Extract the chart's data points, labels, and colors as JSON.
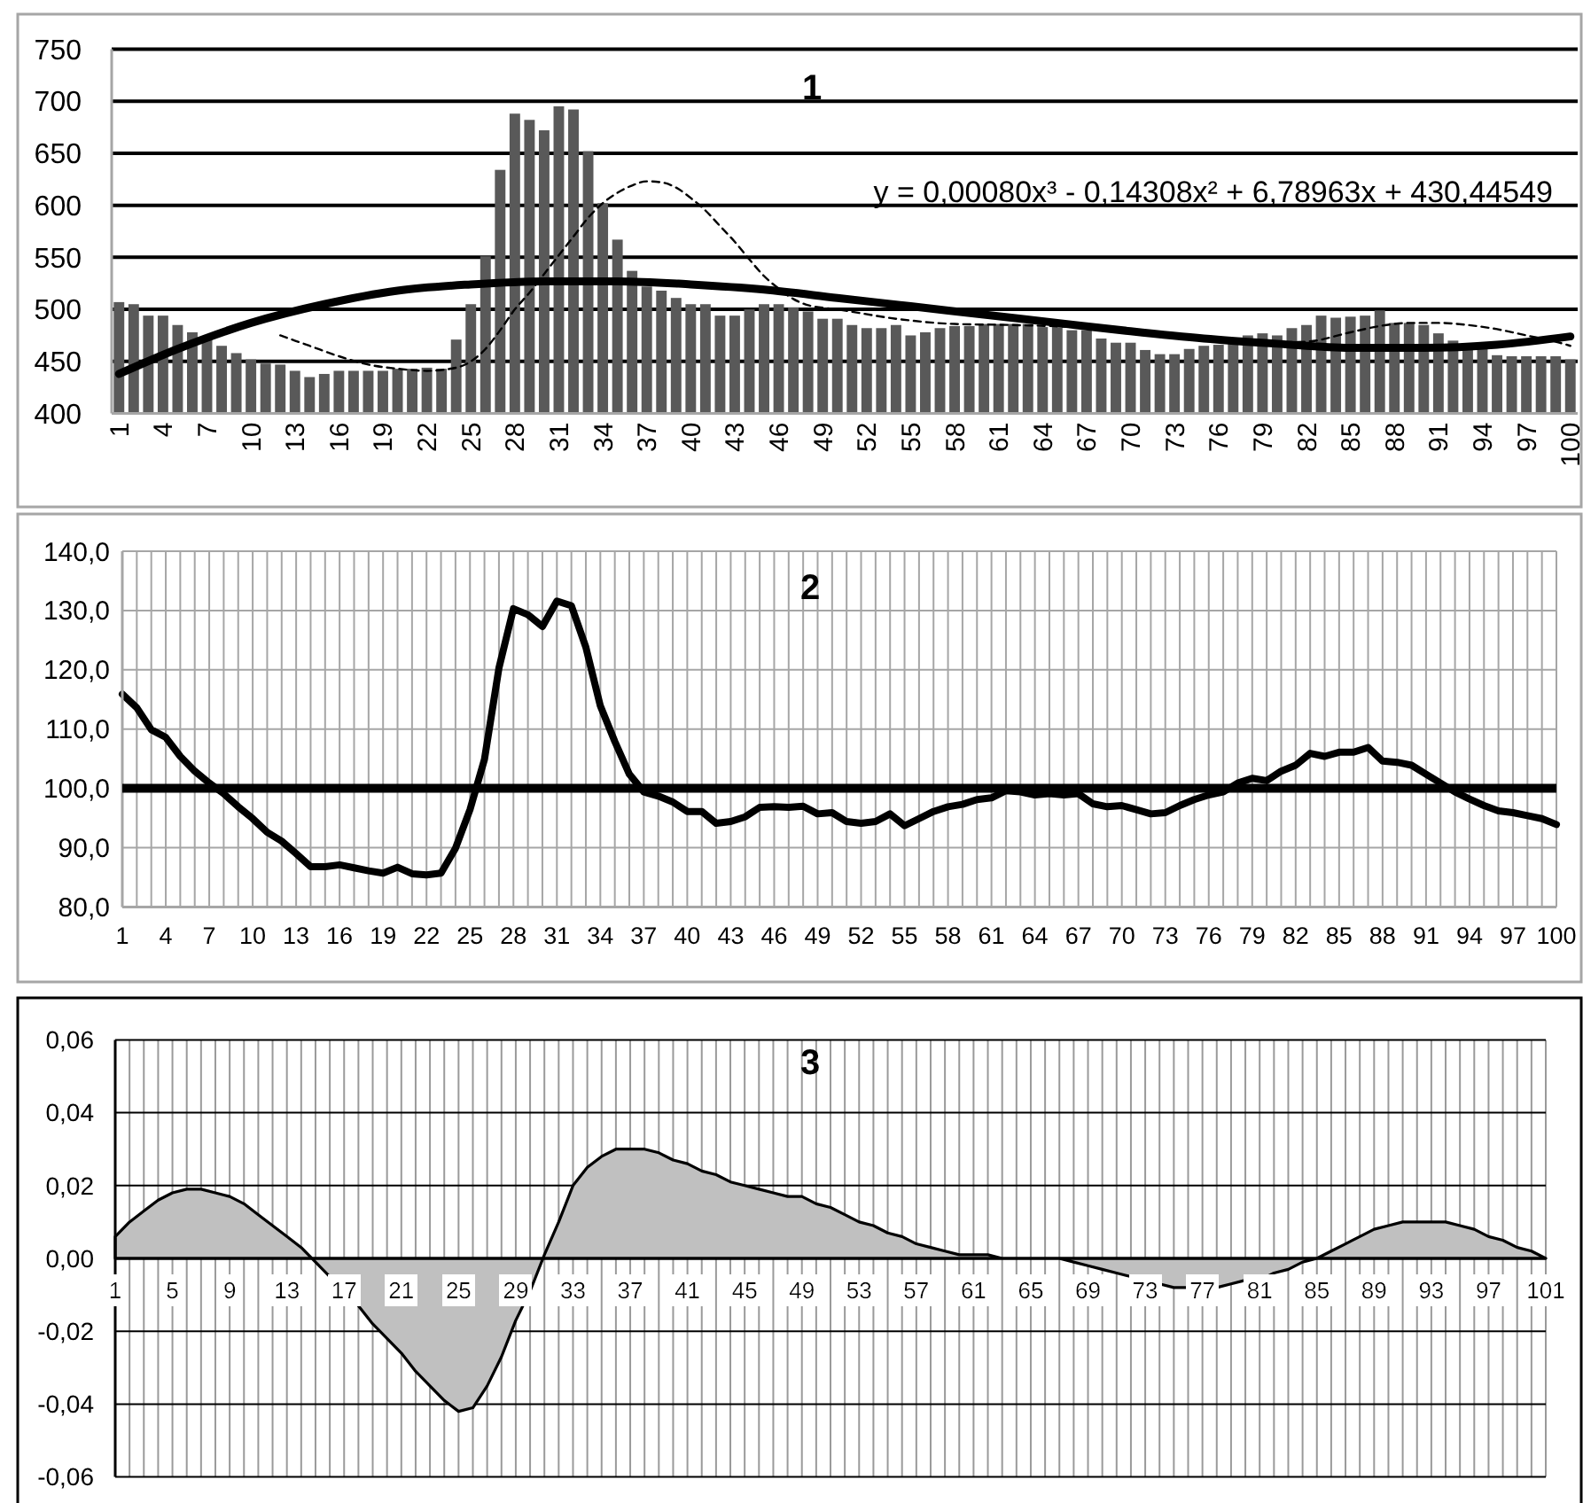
{
  "chart_data": [
    {
      "type": "bar",
      "title": "1",
      "x": [
        1,
        2,
        3,
        4,
        5,
        6,
        7,
        8,
        9,
        10,
        11,
        12,
        13,
        14,
        15,
        16,
        17,
        18,
        19,
        20,
        21,
        22,
        23,
        24,
        25,
        26,
        27,
        28,
        29,
        30,
        31,
        32,
        33,
        34,
        35,
        36,
        37,
        38,
        39,
        40,
        41,
        42,
        43,
        44,
        45,
        46,
        47,
        48,
        49,
        50,
        51,
        52,
        53,
        54,
        55,
        56,
        57,
        58,
        59,
        60,
        61,
        62,
        63,
        64,
        65,
        66,
        67,
        68,
        69,
        70,
        71,
        72,
        73,
        74,
        75,
        76,
        77,
        78,
        79,
        80,
        81,
        82,
        83,
        84,
        85,
        86,
        87,
        88,
        89,
        90,
        91,
        92,
        93,
        94,
        95,
        96,
        97,
        98,
        99,
        100
      ],
      "series": [
        {
          "color": "#595959",
          "values": [
            507,
            505,
            494,
            494,
            485,
            478,
            472,
            465,
            458,
            452,
            448,
            447,
            441,
            435,
            438,
            441,
            441,
            441,
            441,
            443,
            443,
            444,
            443,
            471,
            505,
            551,
            634,
            688,
            682,
            672,
            695,
            692,
            652,
            602,
            567,
            537,
            522,
            518,
            511,
            505,
            505,
            494,
            494,
            500,
            505,
            505,
            502,
            498,
            491,
            491,
            485,
            482,
            482,
            485,
            475,
            478,
            482,
            484,
            484,
            486,
            486,
            486,
            486,
            483,
            483,
            480,
            480,
            472,
            468,
            468,
            461,
            457,
            457,
            462,
            465,
            466,
            469,
            475,
            477,
            475,
            482,
            485,
            494,
            492,
            493,
            494,
            499,
            487,
            487,
            485,
            477,
            470,
            462,
            462,
            456,
            455,
            455,
            455,
            455,
            452
          ]
        },
        {
          "type": "line",
          "color": "#000000",
          "x": [
            1,
            5,
            10,
            15,
            20,
            25,
            30,
            35,
            40,
            45,
            50,
            55,
            60,
            65,
            70,
            75,
            80,
            85,
            90,
            95,
            100
          ],
          "values": [
            438,
            462,
            487,
            505,
            518,
            524,
            527,
            527,
            524,
            519,
            511,
            503,
            495,
            487,
            479,
            472,
            467,
            463,
            463,
            466,
            474
          ]
        },
        {
          "type": "line",
          "color": "#000000",
          "line_style": "dashed",
          "x": [
            12,
            14,
            16,
            18,
            20,
            22,
            24,
            25,
            26,
            27,
            28,
            29,
            30,
            31,
            32,
            33,
            34,
            35,
            36,
            37,
            38,
            39,
            40,
            41,
            42,
            43,
            44,
            45,
            46,
            47,
            48,
            50,
            54,
            58,
            62,
            66,
            70,
            75,
            78,
            82,
            85,
            87,
            89,
            91,
            93,
            95,
            97,
            99,
            100
          ],
          "values": [
            475,
            465,
            455,
            447,
            443,
            441,
            444,
            450,
            462,
            480,
            500,
            516,
            534,
            552,
            570,
            588,
            602,
            612,
            619,
            623,
            622,
            617,
            607,
            595,
            580,
            565,
            548,
            532,
            520,
            510,
            504,
            500,
            491,
            486,
            485,
            483,
            478,
            470,
            468,
            469,
            478,
            484,
            487,
            487,
            485,
            481,
            475,
            469,
            465
          ]
        }
      ],
      "xlim": [
        0.5,
        100.5
      ],
      "xticks": [
        1,
        4,
        7,
        10,
        13,
        16,
        19,
        22,
        25,
        28,
        31,
        34,
        37,
        40,
        43,
        46,
        49,
        52,
        55,
        58,
        61,
        64,
        67,
        70,
        73,
        76,
        79,
        82,
        85,
        88,
        91,
        94,
        97,
        100
      ],
      "ylim": [
        400,
        750
      ],
      "yticks": [
        400,
        450,
        500,
        550,
        600,
        650,
        700,
        750
      ],
      "grid": "y",
      "annotations": [
        "y = 0,00080x³ - 0,14308x² + 6,78963x + 430,44549"
      ]
    },
    {
      "type": "line",
      "title": "2",
      "categories": [
        "1",
        null,
        null,
        "4",
        null,
        null,
        "7",
        null,
        null,
        "10",
        null,
        null,
        "13",
        null,
        null,
        "16",
        null,
        null,
        "19",
        null,
        null,
        "22",
        null,
        null,
        "25",
        null,
        null,
        "28",
        null,
        null,
        "31",
        null,
        null,
        "34",
        null,
        null,
        "37",
        null,
        null,
        "40",
        null,
        null,
        "43",
        null,
        null,
        "46",
        null,
        null,
        "49",
        null,
        null,
        "52",
        null,
        null,
        "55",
        null,
        null,
        "58",
        null,
        null,
        "61",
        null,
        null,
        "64",
        null,
        null,
        "67",
        null,
        null,
        "70",
        null,
        null,
        "73",
        null,
        null,
        "76",
        null,
        null,
        "79",
        null,
        null,
        "82",
        null,
        null,
        "85",
        null,
        null,
        "88",
        null,
        null,
        "91",
        null,
        null,
        "94",
        null,
        null,
        "97",
        null,
        null,
        "100"
      ],
      "values": [
        115.9,
        113.6,
        109.9,
        108.6,
        105.4,
        102.9,
        100.9,
        99.1,
        96.9,
        94.9,
        92.6,
        91.1,
        89.0,
        86.8,
        86.8,
        87.1,
        86.6,
        86.1,
        85.7,
        86.7,
        85.6,
        85.4,
        85.7,
        89.9,
        96.4,
        104.9,
        120.3,
        130.3,
        129.3,
        127.3,
        131.6,
        130.8,
        123.8,
        113.9,
        107.9,
        102.4,
        99.4,
        98.7,
        97.7,
        96.1,
        96.1,
        94.1,
        94.4,
        95.2,
        96.8,
        96.9,
        96.8,
        97.0,
        95.7,
        95.9,
        94.4,
        94.1,
        94.4,
        95.7,
        93.7,
        94.9,
        96.1,
        96.9,
        97.3,
        98.1,
        98.4,
        99.6,
        99.4,
        98.9,
        99.1,
        98.9,
        99.1,
        97.4,
        96.9,
        97.1,
        96.4,
        95.7,
        95.9,
        97.1,
        98.1,
        98.9,
        99.4,
        100.9,
        101.7,
        101.3,
        102.9,
        103.9,
        105.9,
        105.4,
        106.1,
        106.1,
        106.9,
        104.6,
        104.4,
        103.9,
        102.4,
        100.9,
        99.4,
        98.2,
        97.1,
        96.2,
        95.9,
        95.4,
        94.9,
        93.9
      ],
      "color": "#000000",
      "ylim": [
        80,
        140
      ],
      "yticks": [
        {
          "value": 80,
          "label": "80,0"
        },
        {
          "value": 90,
          "label": "90,0"
        },
        {
          "value": 100,
          "label": "100,0"
        },
        {
          "value": 110,
          "label": "110,0"
        },
        {
          "value": 120,
          "label": "120,0"
        },
        {
          "value": 130,
          "label": "130,0"
        },
        {
          "value": 140,
          "label": "140,0"
        }
      ],
      "grid": true,
      "ref_lines": [
        {
          "axis": "y",
          "value": 100,
          "color": "#000000"
        }
      ]
    },
    {
      "type": "area",
      "title": "3",
      "categories": [
        "1",
        null,
        null,
        null,
        "5",
        null,
        null,
        null,
        "9",
        null,
        null,
        null,
        "13",
        null,
        null,
        null,
        "17",
        null,
        null,
        null,
        "21",
        null,
        null,
        null,
        "25",
        null,
        null,
        null,
        "29",
        null,
        null,
        null,
        "33",
        null,
        null,
        null,
        "37",
        null,
        null,
        null,
        "41",
        null,
        null,
        null,
        "45",
        null,
        null,
        null,
        "49",
        null,
        null,
        null,
        "53",
        null,
        null,
        null,
        "57",
        null,
        null,
        null,
        "61",
        null,
        null,
        null,
        "65",
        null,
        null,
        null,
        "69",
        null,
        null,
        null,
        "73",
        null,
        null,
        null,
        "77",
        null,
        null,
        null,
        "81",
        null,
        null,
        null,
        "85",
        null,
        null,
        null,
        "89",
        null,
        null,
        null,
        "93",
        null,
        null,
        null,
        "97",
        null,
        null,
        null,
        "101"
      ],
      "values": [
        0.006,
        0.01,
        0.013,
        0.016,
        0.018,
        0.019,
        0.019,
        0.018,
        0.017,
        0.015,
        0.012,
        0.009,
        0.006,
        0.003,
        -0.001,
        -0.005,
        -0.009,
        -0.013,
        -0.018,
        -0.022,
        -0.026,
        -0.031,
        -0.035,
        -0.039,
        -0.042,
        -0.041,
        -0.035,
        -0.027,
        -0.017,
        -0.009,
        0.001,
        0.01,
        0.02,
        0.025,
        0.028,
        0.03,
        0.03,
        0.03,
        0.029,
        0.027,
        0.026,
        0.024,
        0.023,
        0.021,
        0.02,
        0.019,
        0.018,
        0.017,
        0.017,
        0.015,
        0.014,
        0.012,
        0.01,
        0.009,
        0.007,
        0.006,
        0.004,
        0.003,
        0.002,
        0.001,
        0.001,
        0.001,
        0.0,
        0.0,
        0.0,
        0.0,
        0.0,
        -0.001,
        -0.002,
        -0.003,
        -0.004,
        -0.005,
        -0.006,
        -0.007,
        -0.008,
        -0.008,
        -0.008,
        -0.008,
        -0.007,
        -0.006,
        -0.006,
        -0.004,
        -0.003,
        -0.001,
        0.0,
        0.002,
        0.004,
        0.006,
        0.008,
        0.009,
        0.01,
        0.01,
        0.01,
        0.01,
        0.009,
        0.008,
        0.006,
        0.005,
        0.003,
        0.002,
        0.0
      ],
      "color": "#c0c0c0",
      "ylim": [
        -0.06,
        0.06
      ],
      "yticks": [
        {
          "value": -0.06,
          "label": "-0,06"
        },
        {
          "value": -0.04,
          "label": "-0,04"
        },
        {
          "value": -0.02,
          "label": "-0,02"
        },
        {
          "value": 0,
          "label": "0,00"
        },
        {
          "value": 0.02,
          "label": "0,02"
        },
        {
          "value": 0.04,
          "label": "0,04"
        },
        {
          "value": 0.06,
          "label": "0,06"
        }
      ],
      "grid": true
    }
  ]
}
